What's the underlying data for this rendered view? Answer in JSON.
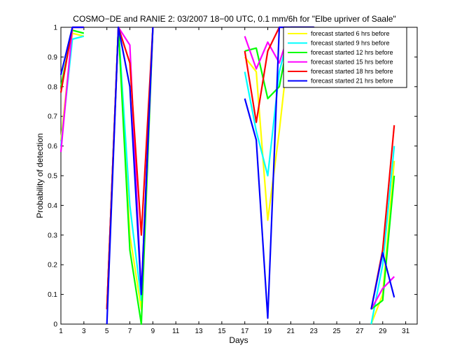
{
  "chart_data": {
    "type": "line",
    "title": "COSMO−DE and RANIE 2: 03/2007 18−00 UTC, 0.1 mm/6h for \"Elbe upriver of Saale\"",
    "xlabel": "Days",
    "ylabel": "Probability of detection",
    "xlim": [
      1,
      32
    ],
    "ylim": [
      0,
      1
    ],
    "xticks": [
      1,
      3,
      5,
      7,
      9,
      11,
      13,
      15,
      17,
      19,
      21,
      23,
      25,
      27,
      29,
      31
    ],
    "yticks": [
      0,
      0.1,
      0.2,
      0.3,
      0.4,
      0.5,
      0.6,
      0.7,
      0.8,
      0.9,
      1
    ],
    "ytick_labels": [
      "0",
      "0.1",
      "0.2",
      "0.3",
      "0.4",
      "0.5",
      "0.6",
      "0.7",
      "0.8",
      "0.9",
      "1"
    ],
    "grid": false,
    "legend_position": "top-right",
    "series": [
      {
        "name": "forecast started 6 hrs before",
        "color": "#ffff00",
        "segments": [
          [
            [
              1,
              0.62
            ],
            [
              2,
              0.98
            ],
            [
              3,
              0.97
            ]
          ],
          [
            [
              5,
              0.05
            ],
            [
              6,
              1.0
            ],
            [
              7,
              0.3
            ],
            [
              8,
              0.05
            ],
            [
              9,
              1.0
            ]
          ],
          [
            [
              17,
              0.9
            ],
            [
              18,
              0.85
            ],
            [
              19,
              0.35
            ],
            [
              20,
              0.65
            ],
            [
              21,
              1.0
            ],
            [
              22,
              1.0
            ],
            [
              23,
              1.0
            ],
            [
              24,
              0.95
            ]
          ],
          [
            [
              28,
              0.0
            ],
            [
              29,
              0.1
            ],
            [
              30,
              0.55
            ]
          ]
        ]
      },
      {
        "name": "forecast started 9 hrs before",
        "color": "#00ffff",
        "segments": [
          [
            [
              1,
              0.6
            ],
            [
              2,
              0.96
            ],
            [
              3,
              0.97
            ]
          ],
          [
            [
              5,
              0.05
            ],
            [
              6,
              1.0
            ],
            [
              7,
              0.4
            ],
            [
              8,
              0.08
            ],
            [
              9,
              1.0
            ]
          ],
          [
            [
              17,
              0.85
            ],
            [
              18,
              0.65
            ],
            [
              19,
              0.5
            ],
            [
              20,
              0.85
            ],
            [
              21,
              1.0
            ],
            [
              22,
              1.0
            ],
            [
              23,
              1.0
            ],
            [
              24,
              0.84
            ]
          ],
          [
            [
              28,
              0.0
            ],
            [
              29,
              0.2
            ],
            [
              30,
              0.6
            ]
          ]
        ]
      },
      {
        "name": "forecast started 12 hrs before",
        "color": "#00ff00",
        "segments": [
          [
            [
              1,
              0.8
            ],
            [
              2,
              0.99
            ],
            [
              3,
              0.98
            ]
          ],
          [
            [
              5,
              0.05
            ],
            [
              6,
              1.0
            ],
            [
              7,
              0.25
            ],
            [
              8,
              0.0
            ],
            [
              9,
              1.0
            ]
          ],
          [
            [
              17,
              0.92
            ],
            [
              18,
              0.93
            ],
            [
              19,
              0.76
            ],
            [
              20,
              0.8
            ],
            [
              21,
              1.0
            ],
            [
              22,
              1.0
            ],
            [
              23,
              1.0
            ],
            [
              24,
              0.97
            ]
          ],
          [
            [
              28,
              0.05
            ],
            [
              29,
              0.08
            ],
            [
              30,
              0.5
            ]
          ]
        ]
      },
      {
        "name": "forecast started 15 hrs before",
        "color": "#ff00ff",
        "segments": [
          [
            [
              1,
              0.58
            ],
            [
              2,
              1.0
            ],
            [
              3,
              1.0
            ]
          ],
          [
            [
              5,
              0.05
            ],
            [
              6,
              1.0
            ],
            [
              7,
              0.94
            ],
            [
              8,
              0.1
            ],
            [
              9,
              1.0
            ]
          ],
          [
            [
              17,
              0.97
            ],
            [
              18,
              0.86
            ],
            [
              19,
              0.95
            ],
            [
              20,
              0.88
            ],
            [
              21,
              1.0
            ],
            [
              22,
              1.0
            ],
            [
              23,
              1.0
            ],
            [
              24,
              0.92
            ]
          ],
          [
            [
              28,
              0.05
            ],
            [
              29,
              0.12
            ],
            [
              30,
              0.16
            ]
          ]
        ]
      },
      {
        "name": "forecast started 18 hrs before",
        "color": "#ff0000",
        "segments": [
          [
            [
              1,
              0.78
            ],
            [
              2,
              1.0
            ],
            [
              3,
              1.0
            ]
          ],
          [
            [
              5,
              0.05
            ],
            [
              6,
              1.0
            ],
            [
              7,
              0.88
            ],
            [
              8,
              0.3
            ],
            [
              9,
              1.0
            ]
          ],
          [
            [
              17,
              0.92
            ],
            [
              18,
              0.68
            ],
            [
              19,
              0.92
            ],
            [
              20,
              1.0
            ],
            [
              21,
              1.0
            ],
            [
              22,
              1.0
            ],
            [
              23,
              1.0
            ],
            [
              24,
              0.93
            ]
          ],
          [
            [
              28,
              0.05
            ],
            [
              29,
              0.25
            ],
            [
              30,
              0.67
            ]
          ]
        ]
      },
      {
        "name": "forecast started 21 hrs before",
        "color": "#0000ff",
        "segments": [
          [
            [
              1,
              0.84
            ],
            [
              2,
              1.0
            ],
            [
              3,
              1.0
            ]
          ],
          [
            [
              5,
              0.0
            ],
            [
              6,
              1.0
            ],
            [
              7,
              0.8
            ],
            [
              8,
              0.1
            ],
            [
              9,
              1.0
            ]
          ],
          [
            [
              17,
              0.76
            ],
            [
              18,
              0.62
            ],
            [
              19,
              0.02
            ],
            [
              20,
              1.0
            ],
            [
              21,
              1.0
            ],
            [
              22,
              1.0
            ],
            [
              23,
              1.0
            ],
            [
              24,
              0.86
            ]
          ],
          [
            [
              28,
              0.05
            ],
            [
              29,
              0.24
            ],
            [
              30,
              0.09
            ]
          ]
        ]
      }
    ]
  }
}
